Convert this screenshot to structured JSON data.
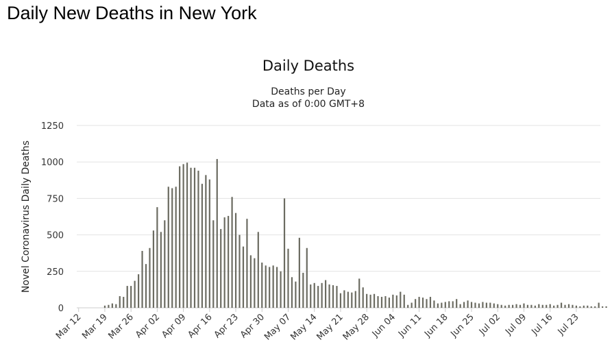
{
  "page": {
    "heading": "Daily New Deaths in New York"
  },
  "colors": {
    "bar": "#6b6b61",
    "grid": "#e3e3e3",
    "axis_text": "#333333"
  },
  "chart_data": {
    "type": "bar",
    "title": "Daily Deaths",
    "subtitle_lines": [
      "Deaths per Day",
      "Data as of 0:00 GMT+8"
    ],
    "xlabel": "",
    "ylabel": "Novel Coronavirus Daily Deaths",
    "ylim": [
      0,
      1250
    ],
    "yticks": [
      0,
      250,
      500,
      750,
      1000,
      1250
    ],
    "grid": true,
    "legend": "none",
    "x_start": "Mar 12",
    "xtick_labels": [
      "Mar 12",
      "Mar 19",
      "Mar 26",
      "Apr 02",
      "Apr 09",
      "Apr 16",
      "Apr 23",
      "Apr 30",
      "May 07",
      "May 14",
      "May 21",
      "May 28",
      "Jun 04",
      "Jun 11",
      "Jun 18",
      "Jun 25",
      "Jul 02",
      "Jul 09",
      "Jul 16",
      "Jul 23"
    ],
    "series": [
      {
        "values": [
          0,
          0,
          0,
          0,
          0,
          0,
          0,
          15,
          20,
          30,
          25,
          80,
          75,
          150,
          150,
          185,
          230,
          390,
          300,
          410,
          530,
          690,
          520,
          600,
          830,
          820,
          830,
          970,
          985,
          995,
          960,
          960,
          940,
          850,
          910,
          880,
          600,
          1020,
          540,
          620,
          630,
          760,
          650,
          500,
          420,
          610,
          360,
          340,
          520,
          310,
          290,
          280,
          290,
          280,
          250,
          750,
          405,
          210,
          180,
          480,
          240,
          410,
          160,
          170,
          150,
          170,
          190,
          160,
          155,
          150,
          100,
          120,
          110,
          105,
          115,
          200,
          140,
          95,
          90,
          95,
          80,
          75,
          80,
          70,
          90,
          85,
          110,
          90,
          20,
          35,
          60,
          75,
          70,
          60,
          75,
          50,
          30,
          35,
          40,
          45,
          45,
          60,
          25,
          40,
          50,
          40,
          35,
          30,
          40,
          35,
          35,
          30,
          25,
          20,
          15,
          20,
          20,
          25,
          20,
          30,
          20,
          20,
          15,
          25,
          20,
          20,
          25,
          15,
          20,
          35,
          20,
          25,
          20,
          15,
          10,
          15,
          15,
          10,
          10,
          35,
          10,
          10
        ]
      }
    ]
  }
}
